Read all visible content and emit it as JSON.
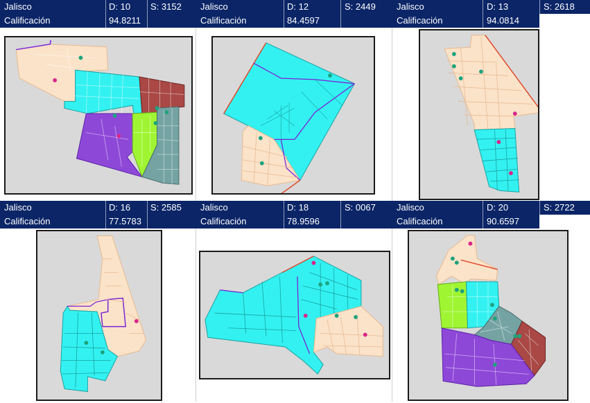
{
  "colors": {
    "header_bg": "#0b2567",
    "header_text": "#ffffff",
    "map_bg": "#d9d9d9",
    "cyan": "#33f1f1",
    "peach": "#fbe3c9",
    "purple": "#8e48d8",
    "green": "#9ff532",
    "gray": "#75a3a3",
    "brown": "#a94845",
    "boundary_purple": "#7a22d6",
    "boundary_red": "#e0482a",
    "school_teal": "#1ea37d",
    "school_magenta": "#d8258a"
  },
  "panels": [
    {
      "state": "Jalisco",
      "district": "D: 10",
      "section": "S: 3152",
      "label": "Calificación",
      "score": "94.8211"
    },
    {
      "state": "Jalisco",
      "district": "D: 12",
      "section": "S: 2449",
      "label": "Calificación",
      "score": "84.4597"
    },
    {
      "state": "Jalisco",
      "district": "D: 13",
      "section": "S: 2618",
      "label": "Calificación",
      "score": "94.0814"
    },
    {
      "state": "Jalisco",
      "district": "D: 16",
      "section": "S: 2585",
      "label": "Calificación",
      "score": "77.5783"
    },
    {
      "state": "Jalisco",
      "district": "D: 18",
      "section": "S: 0067",
      "label": "Calificación",
      "score": "78.9596"
    },
    {
      "state": "Jalisco",
      "district": "D: 20",
      "section": "S: 2722",
      "label": "Calificación",
      "score": "90.6597"
    }
  ]
}
